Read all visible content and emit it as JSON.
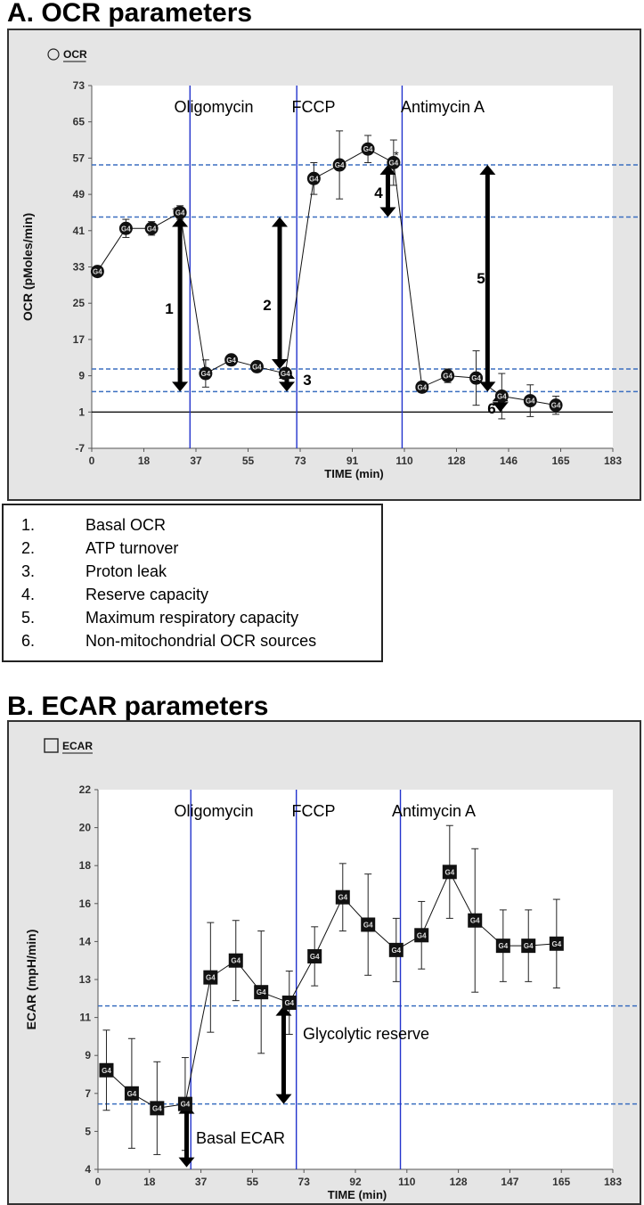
{
  "chart_data": [
    {
      "type": "line",
      "section_title": "A. OCR parameters",
      "legend_label": "OCR",
      "xlabel": "TIME (min)",
      "ylabel": "OCR (pMoles/min)",
      "xlim": [
        0,
        183
      ],
      "ylim": [
        -7,
        73
      ],
      "x_ticks": [
        "0",
        "18",
        "37",
        "55",
        "73",
        "91",
        "110",
        "128",
        "146",
        "165",
        "183"
      ],
      "y_ticks": [
        "-7",
        "1",
        "9",
        "17",
        "25",
        "33",
        "41",
        "49",
        "57",
        "65",
        "73"
      ],
      "point_label": "G4",
      "series": [
        {
          "name": "G4",
          "x": [
            2,
            12,
            21,
            31,
            40,
            49,
            58,
            68,
            78,
            87,
            97,
            106,
            116,
            125,
            135,
            144,
            154,
            163
          ],
          "y": [
            32,
            41.5,
            41.5,
            45,
            9.5,
            12.5,
            11,
            9.5,
            52.5,
            55.5,
            59,
            56,
            6.5,
            9,
            8.5,
            4.5,
            3.5,
            2.5
          ],
          "err": [
            1,
            2,
            1.5,
            1.5,
            3,
            1,
            1,
            1,
            3.5,
            7.5,
            3,
            5,
            1,
            1.5,
            6,
            5,
            3.5,
            2
          ]
        }
      ],
      "injections": [
        {
          "label": "Oligomycin",
          "x": 34.5
        },
        {
          "label": "FCCP",
          "x": 72
        },
        {
          "label": "Antimycin A",
          "x": 109
        }
      ],
      "reference_lines_y": [
        55.5,
        44,
        10.5,
        5.5
      ],
      "arrows": [
        {
          "label": "1",
          "x": 31,
          "y_from": 44,
          "y_to": 5.5
        },
        {
          "label": "2",
          "x": 66,
          "y_from": 44,
          "y_to": 10.5
        },
        {
          "label": "3",
          "x": 68.5,
          "y_from": 10.5,
          "y_to": 5.5
        },
        {
          "label": "4",
          "x": 104,
          "y_from": 55.5,
          "y_to": 44
        },
        {
          "label": "5",
          "x": 139,
          "y_from": 55.5,
          "y_to": 5.5
        },
        {
          "label": "6",
          "x": 143.5,
          "y_from": 5.5,
          "y_to": 1
        }
      ],
      "annotations": [
        "*",
        "*"
      ]
    },
    {
      "type": "line",
      "section_title": "B. ECAR parameters",
      "legend_label": "ECAR",
      "xlabel": "TIME (min)",
      "ylabel": "ECAR (mpH/min)",
      "xlim": [
        0,
        183
      ],
      "ylim": [
        4,
        22
      ],
      "x_ticks": [
        "0",
        "18",
        "37",
        "55",
        "73",
        "92",
        "110",
        "128",
        "147",
        "165",
        "183"
      ],
      "y_ticks": [
        "4",
        "5",
        "7",
        "9",
        "11",
        "13",
        "14",
        "16",
        "18",
        "20",
        "22"
      ],
      "point_label": "G4",
      "series": [
        {
          "name": "G4",
          "x": [
            3,
            12,
            21,
            31,
            40,
            49,
            58,
            68,
            77,
            87,
            96,
            106,
            115,
            125,
            134,
            144,
            153,
            163
          ],
          "y": [
            8.7,
            7.6,
            6.9,
            7.1,
            13.1,
            13.9,
            12.4,
            11.9,
            14.1,
            16.9,
            15.6,
            14.4,
            15.1,
            18.1,
            15.8,
            14.6,
            14.6,
            14.7
          ],
          "err": [
            1.9,
            2.6,
            2.2,
            2.2,
            2.6,
            1.9,
            2.9,
            1.5,
            1.4,
            1.6,
            2.4,
            1.5,
            1.6,
            2.2,
            3.4,
            1.7,
            1.7,
            2.1
          ]
        }
      ],
      "injections": [
        {
          "label": "Oligomycin",
          "x": 33
        },
        {
          "label": "FCCP",
          "x": 70.5
        },
        {
          "label": "Antimycin A",
          "x": 107.5
        }
      ],
      "reference_lines_y": [
        11.75,
        7.1
      ],
      "arrows": [
        {
          "label": "Basal ECAR",
          "x": 31.5,
          "y_from": 7.1,
          "y_to": 4.1
        },
        {
          "label": "Glycolytic  reserve",
          "x": 66,
          "y_from": 11.75,
          "y_to": 7.1
        }
      ]
    }
  ],
  "legend_items": [
    {
      "num": "1.",
      "text": "Basal OCR"
    },
    {
      "num": "2.",
      "text": "ATP turnover"
    },
    {
      "num": "3.",
      "text": "Proton leak"
    },
    {
      "num": "4.",
      "text": "Reserve capacity"
    },
    {
      "num": "5.",
      "text": "Maximum respiratory capacity"
    },
    {
      "num": "6.",
      "text": "Non-mitochondrial OCR sources"
    }
  ],
  "colors": {
    "injection_line": "#2233cc",
    "reference_line": "#3b6fc0",
    "arrow": "#000000",
    "marker": "#111111",
    "plot_bg": "#ffffff",
    "panel_bg": "#e5e5e5"
  }
}
